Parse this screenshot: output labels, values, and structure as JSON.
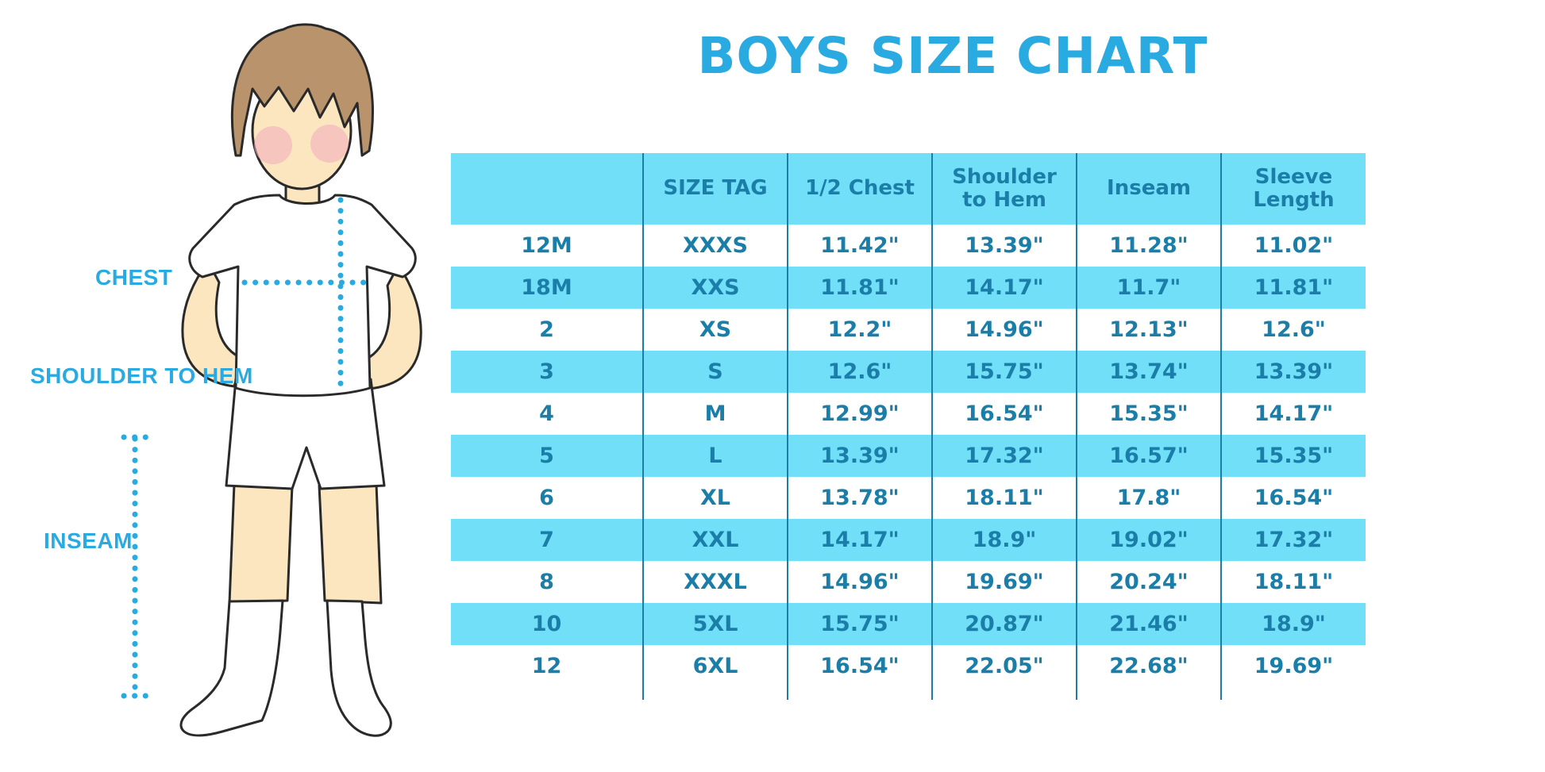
{
  "title": "BOYS SIZE CHART",
  "figure": {
    "description": "cartoon boy in white tee, shorts and knee socks with dotted measurement guides",
    "measurement_labels": [
      "CHEST",
      "SHOULDER TO HEM",
      "INSEAM"
    ]
  },
  "chart_data": {
    "type": "table",
    "title": "BOYS SIZE CHART",
    "columns": [
      "",
      "SIZE TAG",
      "1/2 Chest",
      "Shoulder to Hem",
      "Inseam",
      "Sleeve Length"
    ],
    "rows": [
      [
        "12M",
        "XXXS",
        "11.42\"",
        "13.39\"",
        "11.28\"",
        "11.02\""
      ],
      [
        "18M",
        "XXS",
        "11.81\"",
        "14.17\"",
        "11.7\"",
        "11.81\""
      ],
      [
        "2",
        "XS",
        "12.2\"",
        "14.96\"",
        "12.13\"",
        "12.6\""
      ],
      [
        "3",
        "S",
        "12.6\"",
        "15.75\"",
        "13.74\"",
        "13.39\""
      ],
      [
        "4",
        "M",
        "12.99\"",
        "16.54\"",
        "15.35\"",
        "14.17\""
      ],
      [
        "5",
        "L",
        "13.39\"",
        "17.32\"",
        "16.57\"",
        "15.35\""
      ],
      [
        "6",
        "XL",
        "13.78\"",
        "18.11\"",
        "17.8\"",
        "16.54\""
      ],
      [
        "7",
        "XXL",
        "14.17\"",
        "18.9\"",
        "19.02\"",
        "17.32\""
      ],
      [
        "8",
        "XXXL",
        "14.96\"",
        "19.69\"",
        "20.24\"",
        "18.11\""
      ],
      [
        "10",
        "5XL",
        "15.75\"",
        "20.87\"",
        "21.46\"",
        "18.9\""
      ],
      [
        "12",
        "6XL",
        "16.54\"",
        "22.05\"",
        "22.68\"",
        "19.69\""
      ]
    ],
    "layout": {
      "stripes": "alternating white and cyan rows, cyan header",
      "grid": "vertical column dividers only"
    }
  },
  "colors": {
    "title_text": "#29ABE2",
    "label_text": "#29ABE2",
    "dotted_line": "#29ABE2",
    "table_header_bg": "#70DFF7",
    "row_stripe_bg": "#70DFF7",
    "table_text": "#1B7EA8",
    "column_divider": "#1B7EA8",
    "skin": "#FBE6C0",
    "hair": "#B8936B",
    "blush": "#F2A9BC",
    "outline": "#2A2A2A"
  }
}
